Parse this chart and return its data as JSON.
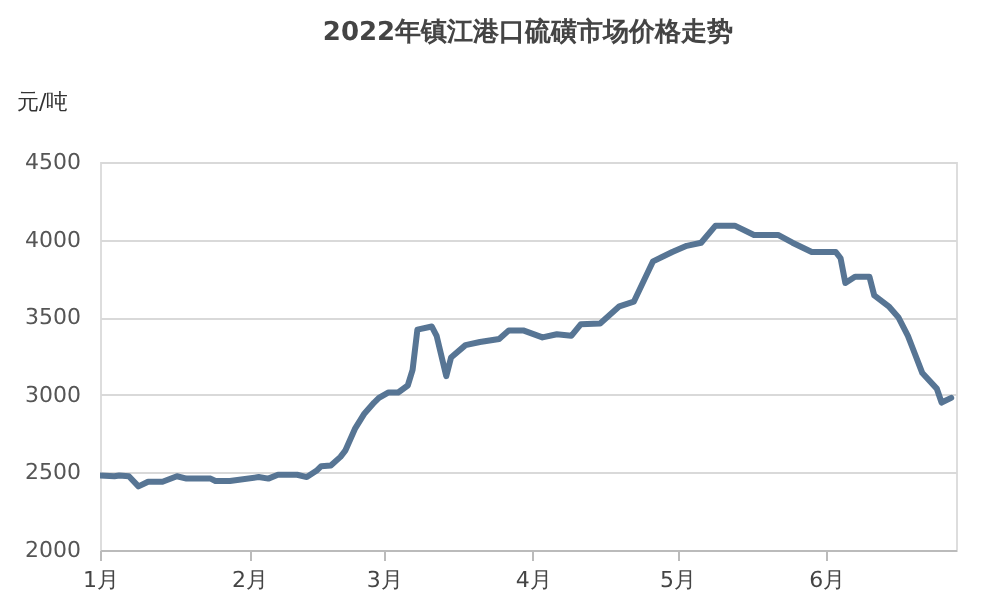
{
  "chart_data": {
    "type": "line",
    "title": "2022年镇江港口硫磺市场价格走势",
    "ylabel": "元/吨",
    "x": [
      "2022-01-01",
      "2022-01-04",
      "2022-01-05",
      "2022-01-07",
      "2022-01-09",
      "2022-01-11",
      "2022-01-14",
      "2022-01-17",
      "2022-01-19",
      "2022-01-24",
      "2022-01-25",
      "2022-01-28",
      "2022-02-03",
      "2022-02-05",
      "2022-02-07",
      "2022-02-11",
      "2022-02-13",
      "2022-02-15",
      "2022-02-16",
      "2022-02-18",
      "2022-02-20",
      "2022-02-21",
      "2022-02-23",
      "2022-02-25",
      "2022-02-27",
      "2022-02-28",
      "2022-03-02",
      "2022-03-04",
      "2022-03-06",
      "2022-03-07",
      "2022-03-08",
      "2022-03-11",
      "2022-03-12",
      "2022-03-14",
      "2022-03-15",
      "2022-03-18",
      "2022-03-21",
      "2022-03-25",
      "2022-03-27",
      "2022-03-30",
      "2022-04-03",
      "2022-04-06",
      "2022-04-09",
      "2022-04-11",
      "2022-04-15",
      "2022-04-19",
      "2022-04-22",
      "2022-04-26",
      "2022-04-30",
      "2022-05-03",
      "2022-05-06",
      "2022-05-09",
      "2022-05-13",
      "2022-05-17",
      "2022-05-22",
      "2022-05-25",
      "2022-05-29",
      "2022-06-03",
      "2022-06-04",
      "2022-06-05",
      "2022-06-07",
      "2022-06-10",
      "2022-06-11",
      "2022-06-14",
      "2022-06-16",
      "2022-06-18",
      "2022-06-19",
      "2022-06-21",
      "2022-06-24",
      "2022-06-25",
      "2022-06-27"
    ],
    "series": [
      {
        "color": "#577594",
        "values": [
          2480,
          2475,
          2480,
          2475,
          2410,
          2440,
          2440,
          2475,
          2460,
          2460,
          2445,
          2445,
          2470,
          2460,
          2485,
          2485,
          2470,
          2510,
          2540,
          2545,
          2600,
          2640,
          2780,
          2880,
          2950,
          2980,
          3015,
          3015,
          3060,
          3160,
          3420,
          3440,
          3380,
          3120,
          3240,
          3320,
          3340,
          3360,
          3415,
          3415,
          3370,
          3390,
          3380,
          3455,
          3460,
          3570,
          3600,
          3860,
          3920,
          3960,
          3980,
          4090,
          4090,
          4030,
          4030,
          3980,
          3920,
          3920,
          3880,
          3720,
          3760,
          3760,
          3640,
          3570,
          3500,
          3380,
          3300,
          3140,
          3040,
          2950,
          2980
        ]
      }
    ],
    "xlim": [
      "2022-01-01",
      "2022-06-28"
    ],
    "xticks": [
      {
        "value": "2022-01",
        "label": "1月"
      },
      {
        "value": "2022-02",
        "label": "2月"
      },
      {
        "value": "2022-03",
        "label": "3月"
      },
      {
        "value": "2022-04",
        "label": "4月"
      },
      {
        "value": "2022-05",
        "label": "5月"
      },
      {
        "value": "2022-06",
        "label": "6月"
      }
    ],
    "ylim": [
      2000,
      4500
    ],
    "yticks": [
      2000,
      2500,
      3000,
      3500,
      4000,
      4500
    ],
    "grid": "y",
    "marker": "none",
    "line_style": "solid"
  }
}
